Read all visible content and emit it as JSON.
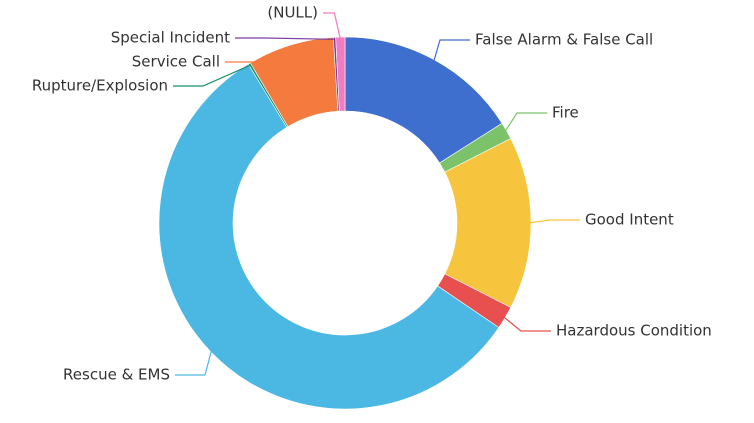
{
  "chart_data": {
    "type": "donut",
    "categories": [
      "False Alarm & False Call",
      "Fire",
      "Good Intent",
      "Hazardous Condition",
      "Rescue & EMS",
      "Rupture/Explosion",
      "Service Call",
      "Special Incident",
      "(NULL)"
    ],
    "values": [
      16,
      1.5,
      15,
      2,
      56.8,
      0.2,
      7.5,
      0.2,
      0.8
    ],
    "colors": [
      "#3f6fce",
      "#7cc26a",
      "#f7c43d",
      "#e8504f",
      "#4bb8e4",
      "#1a8f6a",
      "#f47a3e",
      "#7b3fa0",
      "#f07dc0"
    ]
  }
}
